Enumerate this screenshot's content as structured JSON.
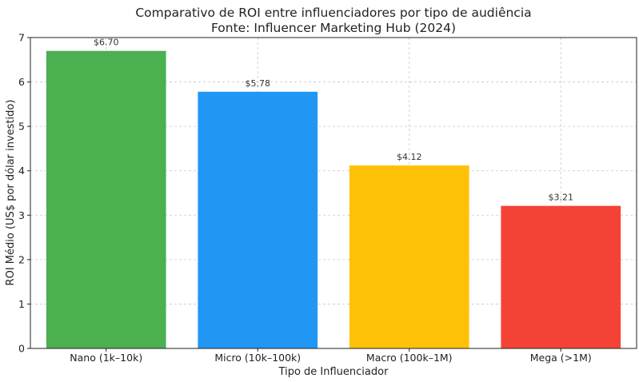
{
  "chart_data": {
    "type": "bar",
    "title": "Comparativo de ROI entre influenciadores por tipo de audiência",
    "subtitle": "Fonte: Influencer Marketing Hub (2024)",
    "xlabel": "Tipo de Influenciador",
    "ylabel": "ROI Médio (US$ por dólar investido)",
    "categories": [
      "Nano (1k–10k)",
      "Micro (10k–100k)",
      "Macro (100k–1M)",
      "Mega (>1M)"
    ],
    "values": [
      6.7,
      5.78,
      4.12,
      3.21
    ],
    "data_labels": [
      "$6.70",
      "$5.78",
      "$4.12",
      "$3.21"
    ],
    "colors": [
      "#4caf50",
      "#2196f3",
      "#ffc107",
      "#f44336"
    ],
    "ylim": [
      0,
      7
    ],
    "yticks": [
      0,
      1,
      2,
      3,
      4,
      5,
      6,
      7
    ],
    "grid": true
  }
}
